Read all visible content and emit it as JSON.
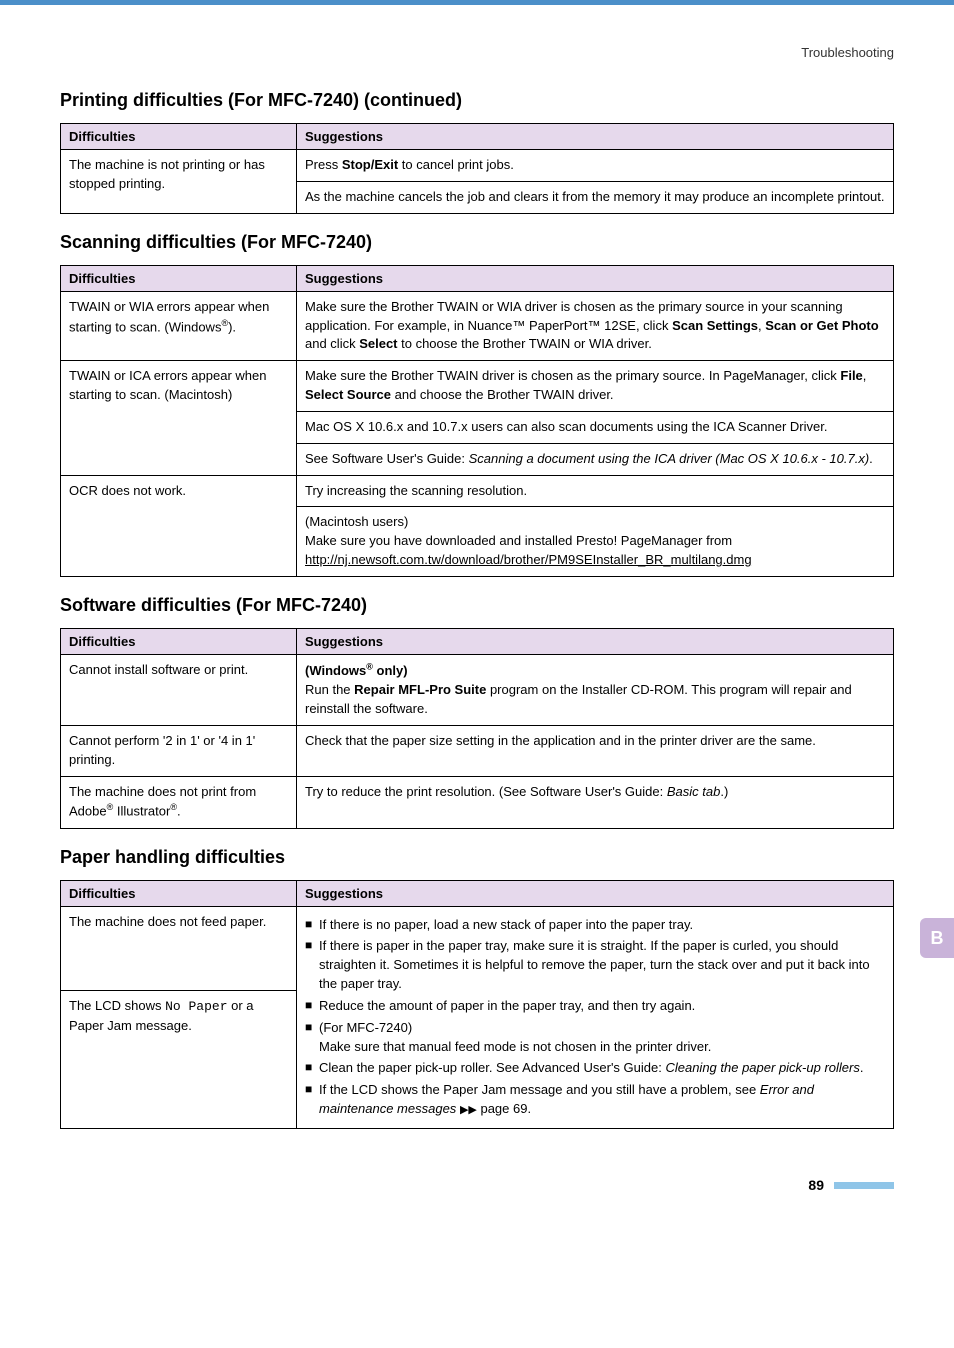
{
  "header": {
    "breadcrumb": "Troubleshooting"
  },
  "side_tab": {
    "letter": "B"
  },
  "footer": {
    "page": "89"
  },
  "sections": {
    "printing": {
      "title": "Printing difficulties (For MFC-7240) (continued)",
      "col_diff": "Difficulties",
      "col_sugg": "Suggestions",
      "row1_diff": "The machine is not printing or has stopped printing.",
      "row1_s1a": "Press ",
      "row1_s1b": "Stop/Exit",
      "row1_s1c": " to cancel print jobs.",
      "row1_s2": "As the machine cancels the job and clears it from the memory it may produce an incomplete printout."
    },
    "scanning": {
      "title": "Scanning difficulties (For MFC-7240)",
      "col_diff": "Difficulties",
      "col_sugg": "Suggestions",
      "r1_diff_a": "TWAIN or WIA errors appear when starting to scan. (Windows",
      "r1_diff_b": ").",
      "r1_s_a": "Make sure the Brother TWAIN or WIA driver is chosen as the primary source in your scanning application. For example, in Nuance™ PaperPort™ 12SE, click ",
      "r1_s_b": "Scan Settings",
      "r1_s_c": ", ",
      "r1_s_d": "Scan or Get Photo",
      "r1_s_e": " and click ",
      "r1_s_f": "Select",
      "r1_s_g": " to choose the Brother TWAIN or WIA driver.",
      "r2_diff": "TWAIN or ICA errors appear when starting to scan. (Macintosh)",
      "r2_s1a": "Make sure the Brother TWAIN driver is chosen as the primary source. In PageManager, click ",
      "r2_s1b": "File",
      "r2_s1c": ", ",
      "r2_s1d": "Select Source",
      "r2_s1e": " and choose the Brother TWAIN driver.",
      "r2_s2": "Mac OS X 10.6.x and 10.7.x users can also scan documents using the ICA Scanner Driver.",
      "r2_s3a": "See Software User's Guide: ",
      "r2_s3b": "Scanning a document using the ICA driver (Mac OS X 10.6.x - 10.7.x)",
      "r2_s3c": ".",
      "r3_diff": "OCR does not work.",
      "r3_s1": "Try increasing the scanning resolution.",
      "r3_s2a": "(Macintosh users)",
      "r3_s2b": "Make sure you have downloaded and installed Presto! PageManager from ",
      "r3_link": "http://nj.newsoft.com.tw/download/brother/PM9SEInstaller_BR_multilang.dmg"
    },
    "software": {
      "title": "Software difficulties (For MFC-7240)",
      "col_diff": "Difficulties",
      "col_sugg": "Suggestions",
      "r1_diff": "Cannot install software or print.",
      "r1_s_a": "(Windows",
      "r1_s_b": " only)",
      "r1_s_c": "Run the ",
      "r1_s_d": "Repair MFL-Pro Suite",
      "r1_s_e": " program on the Installer CD-ROM. This program will repair and reinstall the software.",
      "r2_diff": "Cannot perform '2 in 1' or '4 in 1' printing.",
      "r2_s": "Check that the paper size setting in the application and in the printer driver are the same.",
      "r3_diff_a": "The machine does not print from Adobe",
      "r3_diff_b": " Illustrator",
      "r3_diff_c": ".",
      "r3_s_a": "Try to reduce the print resolution. (See Software User's Guide: ",
      "r3_s_b": "Basic tab",
      "r3_s_c": ".)"
    },
    "paper": {
      "title": "Paper handling difficulties",
      "col_diff": "Difficulties",
      "col_sugg": "Suggestions",
      "r1_diff": "The machine does not feed paper.",
      "r2_diff_a": "The LCD shows ",
      "r2_diff_b": "No Paper",
      "r2_diff_c": " or a Paper Jam message.",
      "b1": "If there is no paper, load a new stack of paper into the paper tray.",
      "b2": "If there is paper in the paper tray, make sure it is straight. If the paper is curled, you should straighten it. Sometimes it is helpful to remove the paper, turn the stack over and put it back into the paper tray.",
      "b3": "Reduce the amount of paper in the paper tray, and then try again.",
      "b4a": "(For MFC-7240)",
      "b4b": "Make sure that manual feed mode is not chosen in the printer driver.",
      "b5a": "Clean the paper pick-up roller. See Advanced User's Guide: ",
      "b5b": "Cleaning the paper pick-up rollers",
      "b5c": ".",
      "b6a": "If the LCD shows the Paper Jam message and you still have a problem, see ",
      "b6b": "Error and maintenance messages",
      "b6c": " page 69."
    }
  }
}
